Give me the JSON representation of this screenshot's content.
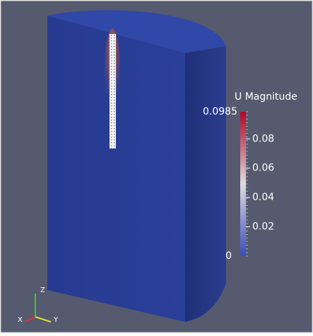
{
  "colorbar": {
    "title": "U Magnitude",
    "min": 0,
    "max": 0.0985,
    "ticks": [
      0.02,
      0.04,
      0.06,
      0.08
    ]
  },
  "orientation_axes": {
    "z": "Z",
    "x": "X",
    "y": "Y"
  }
}
